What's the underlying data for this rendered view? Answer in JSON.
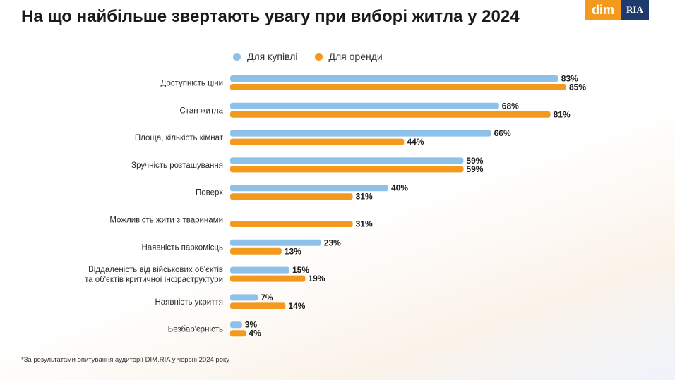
{
  "title": "На що найбільше звертають увагу при виборі житла у 2024",
  "logo": {
    "left": "dim",
    "right": "RIA"
  },
  "footnote": "*За результатами опитування аудиторії DIM.RIA у червні 2024 року",
  "chart_data": {
    "type": "bar",
    "orientation": "horizontal",
    "categories": [
      [
        "Доступність ціни"
      ],
      [
        "Стан житла"
      ],
      [
        "Площа, кількість кімнат"
      ],
      [
        "Зручність розташування"
      ],
      [
        "Поверх"
      ],
      [
        "Можливість жити з тваринами"
      ],
      [
        "Наявність паркомісць"
      ],
      [
        "Віддаленість від військових об'єктів",
        "та об'єктів критичної інфраструктури"
      ],
      [
        "Наявність укриття"
      ],
      [
        "Безбар'єрність"
      ]
    ],
    "series": [
      {
        "name": "Для купівлі",
        "color": "#8ec1ea",
        "values": [
          83,
          68,
          66,
          59,
          40,
          null,
          23,
          15,
          7,
          3
        ]
      },
      {
        "name": "Для оренди",
        "color": "#f39a1e",
        "values": [
          85,
          81,
          44,
          59,
          31,
          31,
          13,
          19,
          14,
          4
        ]
      }
    ],
    "value_suffix": "%",
    "xlim": [
      0,
      100
    ],
    "legend_position": "top",
    "grid": false
  }
}
